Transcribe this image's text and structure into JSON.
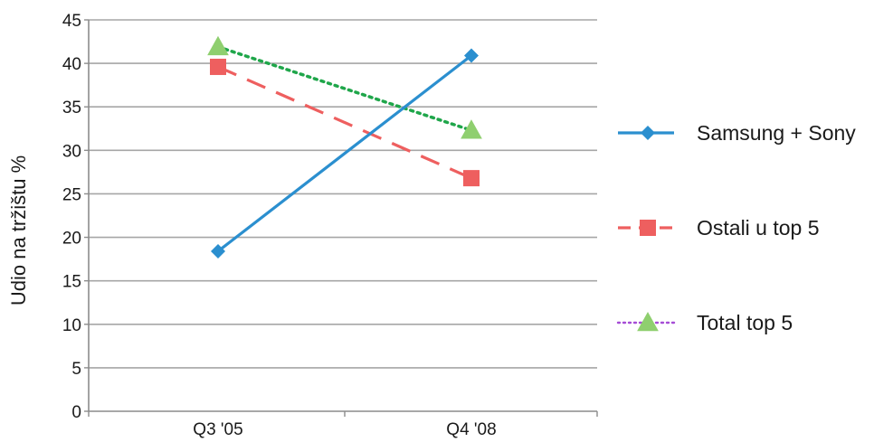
{
  "chart_data": {
    "type": "line",
    "title": "",
    "xlabel": "",
    "ylabel": "Udio na tržištu %",
    "categories": [
      "Q3 '05",
      "Q4 '08"
    ],
    "ylim": [
      0,
      45
    ],
    "yticks": [
      0,
      5,
      10,
      15,
      20,
      25,
      30,
      35,
      40,
      45
    ],
    "grid": true,
    "legend_position": "right",
    "series": [
      {
        "name": "Samsung + Sony",
        "values": [
          18.4,
          40.9
        ],
        "color": "#2b8fcf",
        "line_style": "solid",
        "marker": "diamond"
      },
      {
        "name": "Ostali u top 5",
        "values": [
          39.6,
          26.8
        ],
        "color": "#ee5f5f",
        "line_style": "dashed",
        "marker": "square"
      },
      {
        "name": "Total top 5",
        "values": [
          41.9,
          32.3
        ],
        "color": "#1fa64a",
        "line_style": "dotted",
        "marker": "triangle",
        "legend_line_color": "#a64dd6"
      }
    ]
  }
}
